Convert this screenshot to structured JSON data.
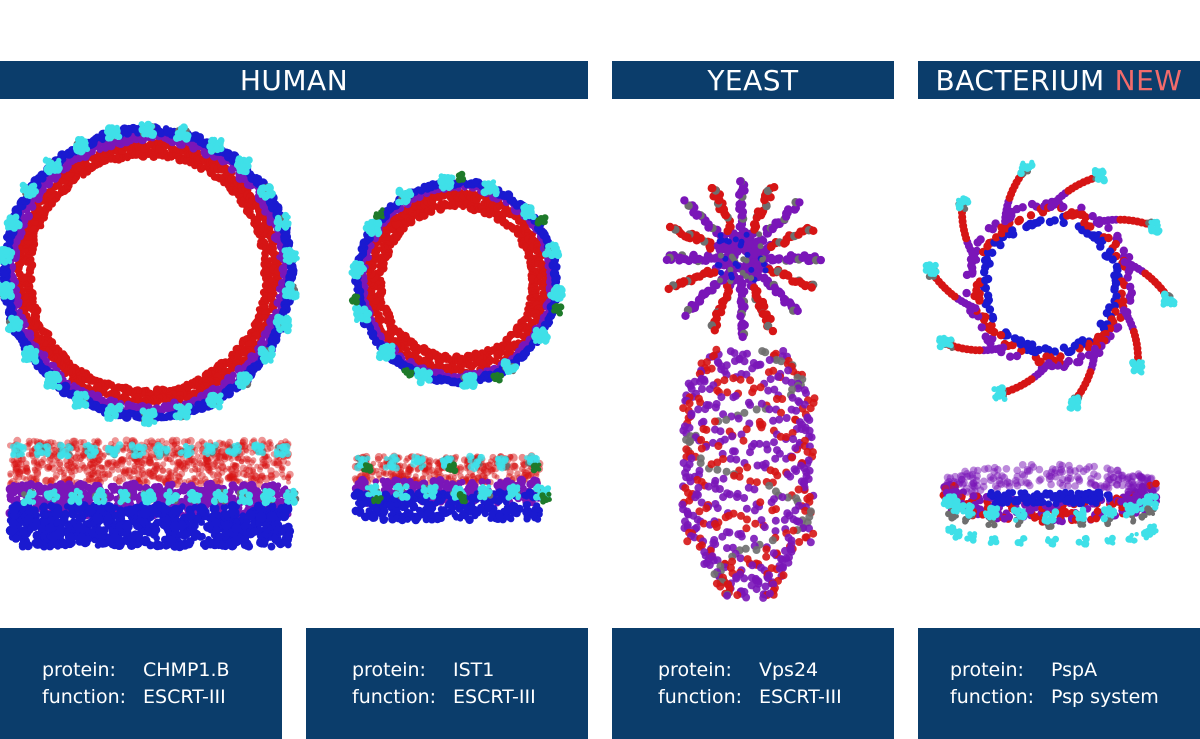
{
  "headers": [
    {
      "label": "HUMAN",
      "badge": ""
    },
    {
      "label": "YEAST",
      "badge": ""
    },
    {
      "label": "BACTERIUM",
      "badge": "NEW"
    }
  ],
  "cards": [
    {
      "protein_label": "protein:",
      "protein": "CHMP1.B",
      "function_label": "function:",
      "function": "ESCRT-III"
    },
    {
      "protein_label": "protein:",
      "protein": "IST1",
      "function_label": "function:",
      "function": "ESCRT-III"
    },
    {
      "protein_label": "protein:",
      "protein": "Vps24",
      "function_label": "function:",
      "function": "ESCRT-III"
    },
    {
      "protein_label": "protein:",
      "protein": "PspA",
      "function_label": "function:",
      "function": "Psp system"
    }
  ],
  "colors": {
    "banner": "#0b3d6b",
    "new_badge": "#f26b6b",
    "red": "#d61515",
    "blue": "#1a1ad0",
    "purple": "#7a16b8",
    "cyan": "#3fe0e8",
    "gray": "#6e6e6e",
    "green": "#1e7a2a"
  }
}
